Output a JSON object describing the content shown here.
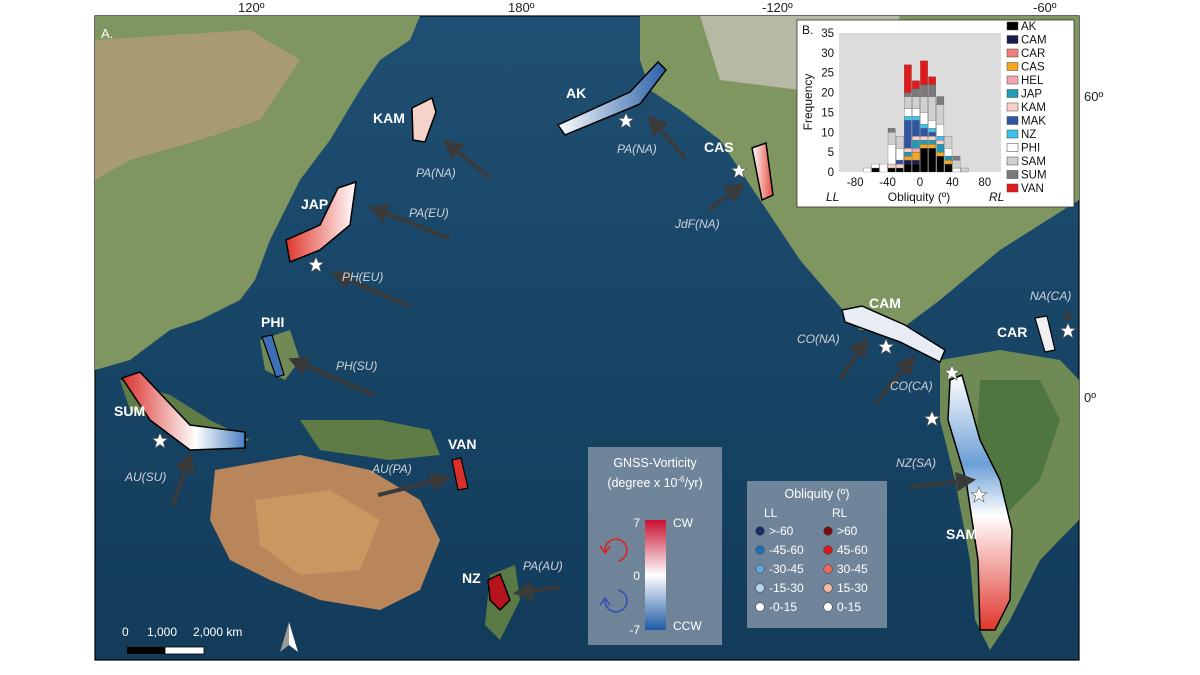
{
  "map": {
    "panel_label": "A.",
    "lon_ticks": [
      "120º",
      "180º",
      "-120º",
      "-60º"
    ],
    "lat_ticks": [
      "60º",
      "0º"
    ],
    "scale_bar": {
      "labels": [
        "0",
        "1,000",
        "2,000 km"
      ]
    },
    "north_arrow": "north-arrow-icon",
    "zones": [
      {
        "code": "AK",
        "color": "#e9eef7"
      },
      {
        "code": "KAM",
        "color": "#f6d3c8"
      },
      {
        "code": "CAS",
        "color": "#f1b7a9"
      },
      {
        "code": "JAP",
        "color": "#e8614f"
      },
      {
        "code": "PHI",
        "color": "#3d6fb6"
      },
      {
        "code": "SUM",
        "color": "#e35a4a"
      },
      {
        "code": "VAN",
        "color": "#d9302b"
      },
      {
        "code": "NZ",
        "color": "#b5141c"
      },
      {
        "code": "CAM",
        "color": "#e7ecf5"
      },
      {
        "code": "CAR",
        "color": "#f0f0f3"
      },
      {
        "code": "SAM",
        "color": "#e45d4c"
      }
    ],
    "plate_motions": [
      "PA(NA)",
      "PA(NA)",
      "PA(EU)",
      "PH(EU)",
      "JdF(NA)",
      "PH(SU)",
      "CO(NA)",
      "CO(CA)",
      "NA(CA)",
      "AU(SU)",
      "AU(PA)",
      "NZ(SA)",
      "PA(AU)"
    ]
  },
  "vorticity_legend": {
    "title_line1": "GNSS-Vorticity",
    "title_prefix": "(degree x 10",
    "title_exp": "-6",
    "title_suffix": "/yr)",
    "max": "7",
    "mid": "0",
    "min": "-7",
    "top_label": "CW",
    "bottom_label": "CCW",
    "colors": {
      "cw": "#c8102e",
      "ccw": "#1f5aa6"
    }
  },
  "obliquity_legend": {
    "title": "Obliquity (º)",
    "ll_header": "LL",
    "rl_header": "RL",
    "ll_items": [
      {
        "label": ">-60",
        "color": "#1d2a6b"
      },
      {
        "label": "-45-60",
        "color": "#1f6fb5"
      },
      {
        "label": "-30-45",
        "color": "#5fa9dc"
      },
      {
        "label": "-15-30",
        "color": "#b9d8ef"
      },
      {
        "label": "-0-15",
        "color": "#ffffff"
      }
    ],
    "rl_items": [
      {
        "label": ">60",
        "color": "#7a0c12"
      },
      {
        "label": "45-60",
        "color": "#d7191c"
      },
      {
        "label": "30-45",
        "color": "#ef6a5a"
      },
      {
        "label": "15-30",
        "color": "#f7b7a3"
      },
      {
        "label": "0-15",
        "color": "#ffffff"
      }
    ]
  },
  "chart_data": {
    "type": "bar",
    "panel_label": "B.",
    "xlabel": "Obliquity (º)",
    "ylabel": "Frequency",
    "left_label": "LL",
    "right_label": "RL",
    "xlim": [
      -100,
      100
    ],
    "ylim": [
      0,
      35
    ],
    "x_ticks": [
      -80,
      -40,
      0,
      40,
      80
    ],
    "y_ticks": [
      0,
      5,
      10,
      15,
      20,
      25,
      30,
      35
    ],
    "bin_centers": [
      -75,
      -65,
      -55,
      -45,
      -35,
      -25,
      -15,
      -5,
      5,
      15,
      25,
      35,
      45,
      55,
      65,
      75
    ],
    "series": [
      {
        "name": "AK",
        "color": "#000000",
        "values": [
          0,
          0,
          1,
          0,
          1,
          1,
          2,
          2,
          6,
          6,
          4,
          2,
          0,
          0,
          0,
          0
        ]
      },
      {
        "name": "CAM",
        "color": "#1a1a4e",
        "values": [
          0,
          0,
          0,
          0,
          0,
          0,
          1,
          1,
          0,
          0,
          0,
          0,
          0,
          0,
          0,
          0
        ]
      },
      {
        "name": "CAR",
        "color": "#f08080",
        "values": [
          0,
          0,
          0,
          0,
          0,
          0,
          0,
          0,
          0,
          0,
          0,
          0,
          0,
          0,
          0,
          0
        ]
      },
      {
        "name": "CAS",
        "color": "#f5a623",
        "values": [
          0,
          0,
          0,
          0,
          0,
          0,
          1,
          2,
          1,
          1,
          1,
          1,
          0,
          0,
          0,
          0
        ]
      },
      {
        "name": "HEL",
        "color": "#f4a6b4",
        "values": [
          0,
          0,
          0,
          0,
          0,
          0,
          0,
          1,
          0,
          0,
          0,
          0,
          0,
          0,
          0,
          0
        ]
      },
      {
        "name": "JAP",
        "color": "#1f9bb5",
        "values": [
          0,
          0,
          0,
          0,
          0,
          0,
          1,
          2,
          1,
          1,
          2,
          1,
          0,
          0,
          0,
          0
        ]
      },
      {
        "name": "KAM",
        "color": "#f7d0c8",
        "values": [
          0,
          0,
          0,
          0,
          1,
          1,
          1,
          1,
          1,
          1,
          1,
          0,
          0,
          0,
          0,
          0
        ]
      },
      {
        "name": "MAK",
        "color": "#2e56a3",
        "values": [
          0,
          0,
          0,
          0,
          0,
          1,
          7,
          4,
          2,
          1,
          0,
          0,
          0,
          0,
          0,
          0
        ]
      },
      {
        "name": "NZ",
        "color": "#3ec1ea",
        "values": [
          0,
          0,
          0,
          0,
          0,
          0,
          1,
          1,
          1,
          1,
          1,
          0,
          0,
          0,
          0,
          0
        ]
      },
      {
        "name": "PHI",
        "color": "#ffffff",
        "values": [
          0,
          1,
          1,
          2,
          5,
          3,
          2,
          2,
          3,
          2,
          3,
          2,
          1,
          0,
          0,
          0
        ]
      },
      {
        "name": "SAM",
        "color": "#cfcfcf",
        "values": [
          0,
          0,
          0,
          0,
          3,
          3,
          3,
          3,
          4,
          6,
          5,
          3,
          2,
          1,
          0,
          0
        ]
      },
      {
        "name": "SUM",
        "color": "#7a7a7a",
        "values": [
          0,
          0,
          0,
          0,
          1,
          0,
          1,
          2,
          3,
          3,
          2,
          0,
          1,
          0,
          0,
          0
        ]
      },
      {
        "name": "VAN",
        "color": "#e31a1c",
        "values": [
          0,
          0,
          0,
          0,
          0,
          0,
          7,
          2,
          6,
          2,
          0,
          0,
          0,
          0,
          0,
          0
        ]
      }
    ],
    "legend_position": "right"
  }
}
